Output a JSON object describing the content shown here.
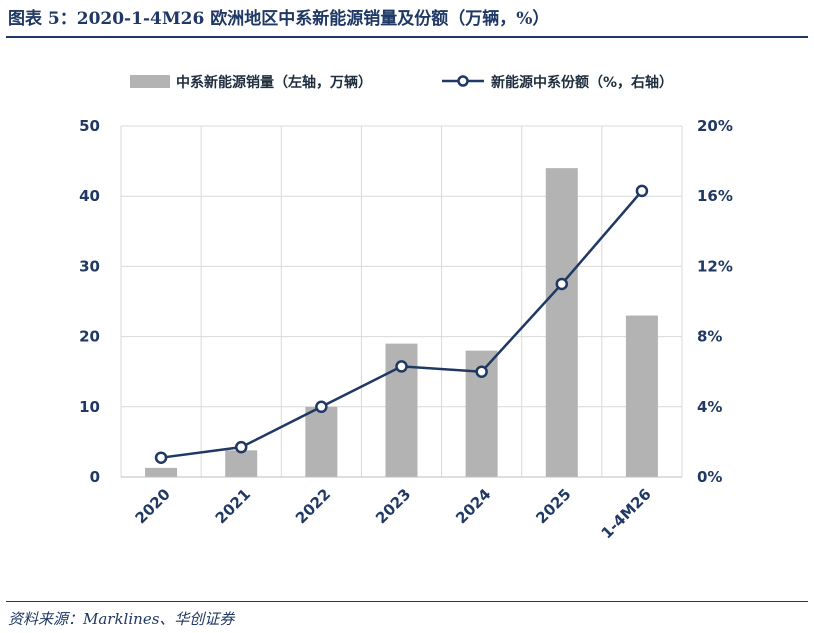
{
  "title": "图表 5：2020-1-4M26 欧洲地区中系新能源销量及份额（万辆，%）",
  "source": "资料来源：Marklines、华创证券",
  "colors": {
    "bar": "#b3b3b3",
    "line": "#1f3864",
    "grid": "#d9d9d9",
    "text": "#1f3864"
  },
  "chart_data": {
    "type": "bar+line",
    "categories": [
      "2020",
      "2021",
      "2022",
      "2023",
      "2024",
      "2025",
      "1-4M26"
    ],
    "series": [
      {
        "name": "中系新能源销量（左轴，万辆）",
        "type": "bar",
        "axis": "left",
        "values": [
          1.3,
          3.8,
          10,
          19,
          18,
          44,
          23
        ]
      },
      {
        "name": "新能源中系份额（%，右轴）",
        "type": "line",
        "axis": "right",
        "values": [
          1.1,
          1.7,
          4.0,
          6.3,
          6.0,
          11.0,
          16.3
        ]
      }
    ],
    "y_left": {
      "min": 0,
      "max": 50,
      "ticks": [
        "0",
        "10",
        "20",
        "30",
        "40",
        "50"
      ]
    },
    "y_right": {
      "min": 0,
      "max": 20,
      "ticks": [
        "0%",
        "4%",
        "8%",
        "12%",
        "16%",
        "20%"
      ]
    },
    "legend_position": "top",
    "grid": true
  }
}
